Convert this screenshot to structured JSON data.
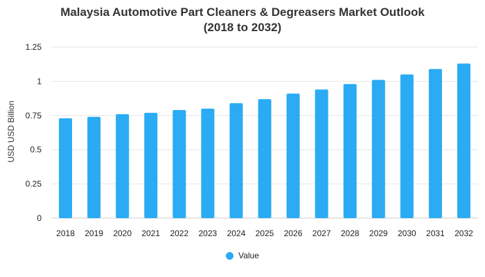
{
  "chart_data": {
    "type": "bar",
    "title_line1": "Malaysia Automotive Part Cleaners & Degreasers Market Outlook",
    "title_line2": "(2018 to 2032)",
    "ylabel": "USD USD Billion",
    "xlabel": "",
    "categories": [
      "2018",
      "2019",
      "2020",
      "2021",
      "2022",
      "2023",
      "2024",
      "2025",
      "2026",
      "2027",
      "2028",
      "2029",
      "2030",
      "2031",
      "2032"
    ],
    "series": [
      {
        "name": "Value",
        "color": "#2aabf3",
        "values": [
          0.73,
          0.74,
          0.76,
          0.77,
          0.79,
          0.8,
          0.84,
          0.87,
          0.91,
          0.94,
          0.98,
          1.01,
          1.05,
          1.09,
          1.13
        ]
      }
    ],
    "ylim": [
      0,
      1.25
    ],
    "yticks": [
      "0",
      "0.25",
      "0.5",
      "0.75",
      "1",
      "1.25"
    ],
    "ytick_values": [
      0,
      0.25,
      0.5,
      0.75,
      1,
      1.25
    ],
    "grid": true,
    "legend_position": "bottom"
  }
}
